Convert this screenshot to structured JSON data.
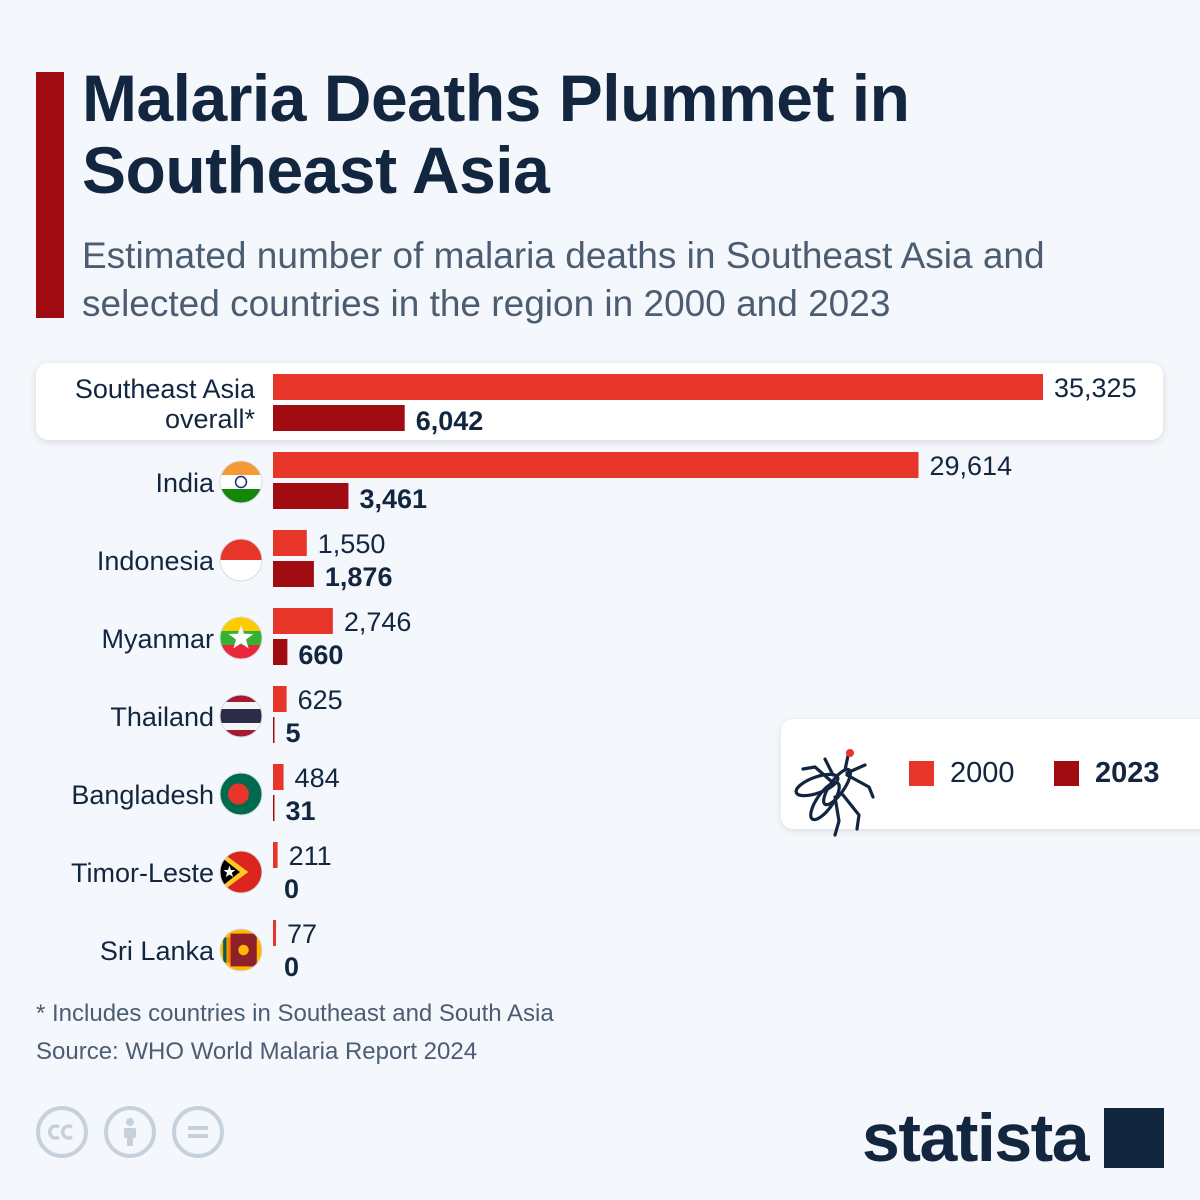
{
  "title": "Malaria Deaths Plummet in Southeast Asia",
  "subtitle": "Estimated number of malaria deaths in Southeast Asia and selected countries in the region in 2000 and 2023",
  "colors": {
    "accent": "#a00c12",
    "series_2000": "#e8352a",
    "series_2023": "#a00c12",
    "text_dark": "#13263f",
    "text_muted": "#4c5d71"
  },
  "chart_data": {
    "type": "bar",
    "orientation": "horizontal",
    "categories": [
      "Southeast Asia overall*",
      "India",
      "Indonesia",
      "Myanmar",
      "Thailand",
      "Bangladesh",
      "Timor-Leste",
      "Sri Lanka"
    ],
    "series": [
      {
        "name": "2000",
        "values": [
          35325,
          29614,
          1550,
          2746,
          625,
          484,
          211,
          77
        ],
        "labels": [
          "35,325",
          "29,614",
          "1,550",
          "2,746",
          "625",
          "484",
          "211",
          "77"
        ]
      },
      {
        "name": "2023",
        "values": [
          6042,
          3461,
          1876,
          660,
          5,
          31,
          0,
          0
        ],
        "labels": [
          "6,042",
          "3,461",
          "1,876",
          "660",
          "5",
          "31",
          "0",
          "0"
        ]
      }
    ],
    "flags": [
      "",
      "india-flag-icon",
      "indonesia-flag-icon",
      "myanmar-flag-icon",
      "thailand-flag-icon",
      "bangladesh-flag-icon",
      "timor-leste-flag-icon",
      "sri-lanka-flag-icon"
    ],
    "highlighted_category": "Southeast Asia overall*",
    "xlim": [
      0,
      35325
    ],
    "legend_position": "right",
    "grid": false
  },
  "legend": {
    "items": [
      {
        "label": "2000"
      },
      {
        "label": "2023"
      }
    ],
    "icon": "mosquito-icon"
  },
  "footnote": "* Includes countries in Southeast and South Asia",
  "source": "Source: WHO World Malaria Report 2024",
  "license_icons": [
    "cc-icon",
    "attribution-icon",
    "no-derivatives-icon"
  ],
  "brand": {
    "name": "statista",
    "icon": "statista-logo-icon"
  }
}
